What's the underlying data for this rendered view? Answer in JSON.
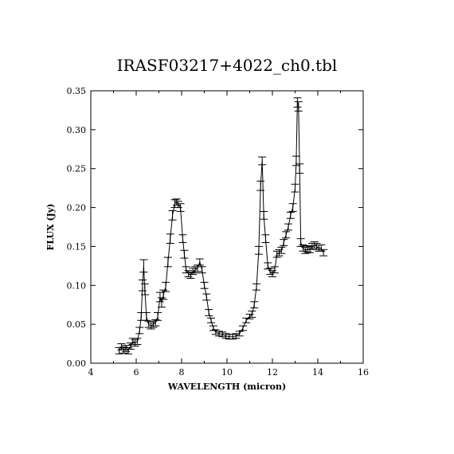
{
  "chart_data": {
    "type": "line",
    "title": "IRASF03217+4022_ch0.tbl",
    "xlabel": "WAVELENGTH (micron)",
    "ylabel": "FLUX (Jy)",
    "xlim": [
      4,
      16
    ],
    "ylim": [
      0,
      0.35
    ],
    "xticks": [
      4,
      6,
      8,
      10,
      12,
      14,
      16
    ],
    "xtick_labels": [
      "4",
      "6",
      "8",
      "10",
      "12",
      "14",
      "16"
    ],
    "yticks": [
      0,
      0.05,
      0.1,
      0.15,
      0.2,
      0.25,
      0.3,
      0.35
    ],
    "ytick_labels": [
      "0.00",
      "0.05",
      "0.10",
      "0.15",
      "0.20",
      "0.25",
      "0.30",
      "0.35"
    ],
    "grid": false,
    "series": [
      {
        "x": [
          5.25,
          5.35,
          5.45,
          5.55,
          5.65,
          5.75,
          5.85,
          5.95,
          6.05,
          6.15,
          6.22,
          6.28,
          6.33,
          6.38,
          6.45,
          6.55,
          6.65,
          6.75,
          6.85,
          6.95,
          7.05,
          7.12,
          7.2,
          7.3,
          7.4,
          7.5,
          7.6,
          7.7,
          7.78,
          7.85,
          7.95,
          8.05,
          8.12,
          8.2,
          8.3,
          8.4,
          8.5,
          8.6,
          8.7,
          8.8,
          8.9,
          9.0,
          9.1,
          9.2,
          9.3,
          9.4,
          9.5,
          9.65,
          9.8,
          9.95,
          10.1,
          10.25,
          10.4,
          10.55,
          10.7,
          10.85,
          11.0,
          11.1,
          11.2,
          11.3,
          11.4,
          11.48,
          11.55,
          11.62,
          11.7,
          11.8,
          11.9,
          12.0,
          12.1,
          12.2,
          12.3,
          12.4,
          12.5,
          12.6,
          12.7,
          12.8,
          12.9,
          13.0,
          13.05,
          13.1,
          13.15,
          13.2,
          13.25,
          13.35,
          13.45,
          13.55,
          13.65,
          13.75,
          13.85,
          13.95,
          14.05,
          14.15,
          14.25
        ],
        "y": [
          0.016,
          0.021,
          0.017,
          0.019,
          0.016,
          0.022,
          0.028,
          0.026,
          0.028,
          0.042,
          0.06,
          0.1,
          0.125,
          0.095,
          0.06,
          0.05,
          0.048,
          0.05,
          0.052,
          0.06,
          0.085,
          0.078,
          0.088,
          0.098,
          0.13,
          0.16,
          0.19,
          0.205,
          0.207,
          0.204,
          0.2,
          0.16,
          0.14,
          0.12,
          0.115,
          0.113,
          0.118,
          0.12,
          0.122,
          0.13,
          0.12,
          0.1,
          0.085,
          0.065,
          0.055,
          0.045,
          0.04,
          0.038,
          0.037,
          0.035,
          0.034,
          0.034,
          0.035,
          0.038,
          0.045,
          0.055,
          0.06,
          0.063,
          0.075,
          0.098,
          0.145,
          0.228,
          0.26,
          0.19,
          0.16,
          0.125,
          0.118,
          0.115,
          0.12,
          0.14,
          0.142,
          0.145,
          0.155,
          0.165,
          0.175,
          0.19,
          0.2,
          0.225,
          0.26,
          0.335,
          0.33,
          0.25,
          0.155,
          0.148,
          0.145,
          0.147,
          0.146,
          0.15,
          0.152,
          0.15,
          0.148,
          0.148,
          0.142
        ],
        "err": [
          0.004,
          0.004,
          0.004,
          0.004,
          0.004,
          0.004,
          0.004,
          0.004,
          0.004,
          0.004,
          0.005,
          0.007,
          0.008,
          0.007,
          0.005,
          0.004,
          0.004,
          0.004,
          0.004,
          0.005,
          0.006,
          0.006,
          0.006,
          0.006,
          0.006,
          0.006,
          0.006,
          0.005,
          0.004,
          0.004,
          0.005,
          0.005,
          0.005,
          0.004,
          0.004,
          0.004,
          0.004,
          0.004,
          0.004,
          0.004,
          0.004,
          0.004,
          0.004,
          0.004,
          0.003,
          0.003,
          0.003,
          0.003,
          0.003,
          0.003,
          0.003,
          0.003,
          0.003,
          0.003,
          0.003,
          0.003,
          0.003,
          0.004,
          0.004,
          0.004,
          0.005,
          0.006,
          0.005,
          0.005,
          0.005,
          0.004,
          0.004,
          0.004,
          0.004,
          0.004,
          0.004,
          0.004,
          0.004,
          0.004,
          0.004,
          0.004,
          0.005,
          0.005,
          0.006,
          0.006,
          0.006,
          0.006,
          0.005,
          0.004,
          0.004,
          0.004,
          0.004,
          0.004,
          0.004,
          0.004,
          0.004,
          0.004,
          0.004
        ]
      }
    ]
  }
}
